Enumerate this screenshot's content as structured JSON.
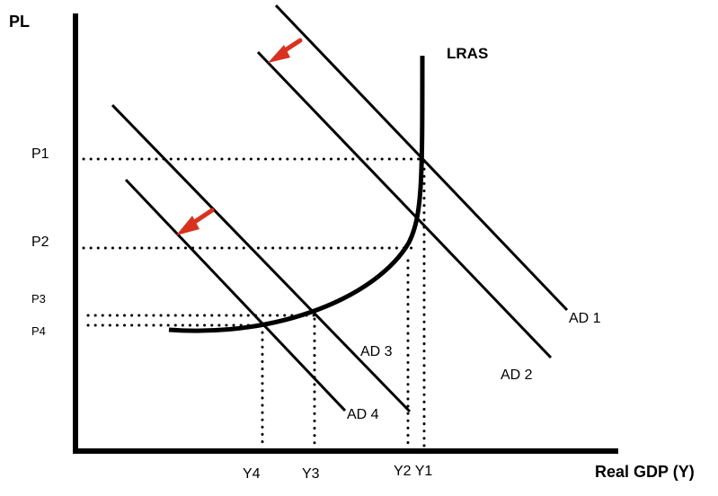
{
  "axes": {
    "y_title": "PL",
    "x_title": "Real GDP (Y)"
  },
  "price_levels": [
    "P1",
    "P2",
    "P3",
    "P4"
  ],
  "outputs": [
    "Y4",
    "Y3",
    "Y2 Y1"
  ],
  "curves": {
    "lras": "LRAS",
    "ad1": "AD 1",
    "ad2": "AD 2",
    "ad3": "AD 3",
    "ad4": "AD 4"
  },
  "colors": {
    "lines": "#000000",
    "arrows": "#d8321f"
  },
  "icons": [
    "shift-arrow-icon"
  ]
}
